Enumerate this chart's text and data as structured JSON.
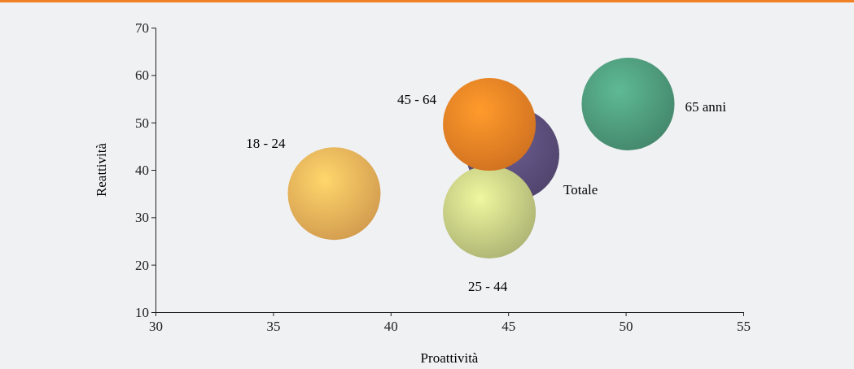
{
  "chart_data": {
    "type": "bubble",
    "xlabel": "Proattività",
    "ylabel": "Reattività",
    "xlim": [
      30,
      55
    ],
    "xticks": [
      30,
      35,
      40,
      45,
      50,
      55
    ],
    "ylim": [
      10,
      70
    ],
    "yticks": [
      10,
      20,
      30,
      40,
      50,
      60,
      70
    ],
    "grid": false,
    "legend": false,
    "series": [
      {
        "name": "18 - 24",
        "color": "#f2b35a",
        "x": [
          37.6
        ],
        "values": [
          35.0
        ],
        "sizes": [
          1
        ]
      },
      {
        "name": "Totale",
        "color": "#5c4f7c",
        "x": [
          45.2
        ],
        "values": [
          43.3
        ],
        "sizes": [
          1
        ]
      },
      {
        "name": "25 - 44",
        "color": "#c8cf85",
        "x": [
          44.2
        ],
        "values": [
          31.1
        ],
        "sizes": [
          1
        ]
      },
      {
        "name": "45 - 64",
        "color": "#f08225",
        "x": [
          44.2
        ],
        "values": [
          49.6
        ],
        "sizes": [
          1
        ]
      },
      {
        "name": "65 anni",
        "color": "#4f9c7c",
        "x": [
          50.1
        ],
        "values": [
          53.9
        ],
        "sizes": [
          1
        ]
      }
    ]
  }
}
